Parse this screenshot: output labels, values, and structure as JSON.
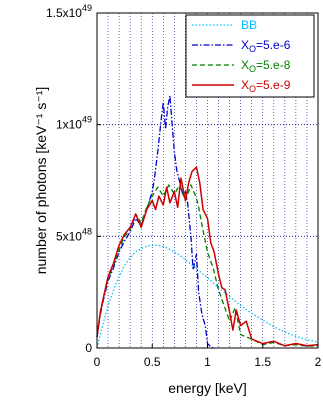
{
  "chart_data": {
    "type": "line",
    "xlabel": "energy [keV]",
    "ylabel": "number of photons [keV⁻¹ s⁻¹]",
    "xlim": [
      0,
      2
    ],
    "ylim": [
      0,
      1.5e+49
    ],
    "xticks": [
      {
        "value": 0,
        "label": "0"
      },
      {
        "value": 0.5,
        "label": "0.5"
      },
      {
        "value": 1,
        "label": "1"
      },
      {
        "value": 1.5,
        "label": "1.5"
      },
      {
        "value": 2,
        "label": "2"
      }
    ],
    "yticks": [
      {
        "value": 0,
        "label": "0",
        "base": "0",
        "exp": ""
      },
      {
        "value": 5e+48,
        "label": "5x10^48",
        "base": "5x10",
        "exp": "48"
      },
      {
        "value": 1e+49,
        "label": "1x10^49",
        "base": "1x10",
        "exp": "49"
      },
      {
        "value": 1.5e+49,
        "label": "1.5x10^49",
        "base": "1.5x10",
        "exp": "49"
      }
    ],
    "grid": {
      "x_minor_step": 0.1,
      "y_major": true
    },
    "legend_position": "top-right",
    "series": [
      {
        "name": "BB",
        "color": "#00bfff",
        "style": "dotted",
        "x": [
          0.0,
          0.05,
          0.1,
          0.15,
          0.2,
          0.25,
          0.3,
          0.35,
          0.4,
          0.45,
          0.5,
          0.55,
          0.6,
          0.65,
          0.7,
          0.75,
          0.8,
          0.85,
          0.9,
          0.95,
          1.0,
          1.1,
          1.2,
          1.3,
          1.4,
          1.5,
          1.6,
          1.7,
          1.8,
          1.9,
          2.0
        ],
        "y": [
          0,
          1e+48,
          1.9e+48,
          2.6e+48,
          3.2e+48,
          3.7e+48,
          4.05e+48,
          4.3e+48,
          4.45e+48,
          4.55e+48,
          4.6e+48,
          4.6e+48,
          4.55e+48,
          4.45e+48,
          4.3e+48,
          4.15e+48,
          3.95e+48,
          3.75e+48,
          3.55e+48,
          3.35e+48,
          3.15e+48,
          2.7e+48,
          2.3e+48,
          1.9e+48,
          1.55e+48,
          1.25e+48,
          9.5e+47,
          7.2e+47,
          5.2e+47,
          3.7e+47,
          2.6e+47
        ]
      },
      {
        "name": "X_O=5.e-6",
        "label_base": "X",
        "label_sub": "O",
        "label_rest": "=5.e-6",
        "color": "#0000cc",
        "style": "dashdot",
        "x": [
          0.0,
          0.03,
          0.06,
          0.1,
          0.15,
          0.2,
          0.25,
          0.3,
          0.35,
          0.4,
          0.45,
          0.5,
          0.52,
          0.55,
          0.58,
          0.6,
          0.62,
          0.64,
          0.66,
          0.68,
          0.7,
          0.72,
          0.75,
          0.78,
          0.8,
          0.82,
          0.85,
          0.87,
          0.9,
          0.92,
          0.95,
          0.98,
          1.0,
          1.03,
          1.05
        ],
        "y": [
          5e+47,
          1.5e+48,
          2.2e+48,
          3e+48,
          3.6e+48,
          4.3e+48,
          4.8e+48,
          5.2e+48,
          5.8e+48,
          5.5e+48,
          6.2e+48,
          7e+48,
          7.6e+48,
          8.8e+48,
          1.02e+49,
          1.1e+49,
          9.8e+48,
          1.08e+49,
          1.13e+49,
          1e+49,
          8.8e+48,
          8e+48,
          7.4e+48,
          6.8e+48,
          7e+48,
          6.5e+48,
          5e+48,
          3.5e+48,
          4.2e+48,
          2.5e+48,
          1.5e+48,
          1e+48,
          2e+47,
          5e+46,
          0
        ]
      },
      {
        "name": "X_O=5.e-8",
        "label_base": "X",
        "label_sub": "O",
        "label_rest": "=5.e-8",
        "color": "#007f00",
        "style": "dashed",
        "x": [
          0.0,
          0.03,
          0.06,
          0.1,
          0.15,
          0.2,
          0.25,
          0.3,
          0.35,
          0.4,
          0.45,
          0.5,
          0.55,
          0.6,
          0.65,
          0.7,
          0.75,
          0.8,
          0.85,
          0.9,
          0.92,
          0.95,
          1.0,
          1.05,
          1.1,
          1.15,
          1.2,
          1.25,
          1.3,
          1.4,
          1.5,
          1.6,
          1.7,
          1.8,
          1.9,
          2.0
        ],
        "y": [
          5e+47,
          1.6e+48,
          2.3e+48,
          3.1e+48,
          3.7e+48,
          4.4e+48,
          5e+48,
          5.3e+48,
          6e+48,
          5.6e+48,
          6.3e+48,
          6.8e+48,
          7.2e+48,
          6.8e+48,
          7.3e+48,
          6.9e+48,
          7.3e+48,
          6.6e+48,
          7.3e+48,
          6.7e+48,
          6.3e+48,
          5.5e+48,
          4.3e+48,
          3.6e+48,
          2.6e+48,
          1.9e+48,
          1.2e+48,
          1.8e+48,
          6e+47,
          4e+47,
          1.5e+47,
          2.5e+47,
          1e+47,
          1.5e+47,
          8e+46,
          1e+47
        ]
      },
      {
        "name": "X_O=5.e-9",
        "label_base": "X",
        "label_sub": "O",
        "label_rest": "=5.e-9",
        "color": "#cc0000",
        "style": "solid",
        "x": [
          0.0,
          0.03,
          0.06,
          0.1,
          0.15,
          0.2,
          0.25,
          0.3,
          0.35,
          0.4,
          0.45,
          0.5,
          0.53,
          0.56,
          0.6,
          0.63,
          0.66,
          0.7,
          0.73,
          0.76,
          0.8,
          0.83,
          0.86,
          0.9,
          0.93,
          0.96,
          1.0,
          1.03,
          1.06,
          1.1,
          1.13,
          1.16,
          1.2,
          1.23,
          1.26,
          1.3,
          1.35,
          1.4,
          1.5,
          1.6,
          1.7,
          1.8,
          1.9,
          2.0
        ],
        "y": [
          5e+47,
          1.6e+48,
          2.3e+48,
          3.2e+48,
          3.8e+48,
          4.6e+48,
          5.1e+48,
          5.4e+48,
          6e+48,
          5.4e+48,
          6.2e+48,
          6.6e+48,
          6.2e+48,
          6.8e+48,
          6.4e+48,
          7.2e+48,
          6.5e+48,
          7e+48,
          6.3e+48,
          7.6e+48,
          6.6e+48,
          7.4e+48,
          7.9e+48,
          8.1e+48,
          7.4e+48,
          6.2e+48,
          5.8e+48,
          4.7e+48,
          4.3e+48,
          3.3e+48,
          2.7e+48,
          2.6e+48,
          1.6e+48,
          8e+47,
          1.7e+48,
          1e+48,
          1.2e+48,
          4e+47,
          2e+47,
          3e+47,
          1e+47,
          2e+47,
          1e+47,
          1.5e+47
        ]
      }
    ]
  }
}
